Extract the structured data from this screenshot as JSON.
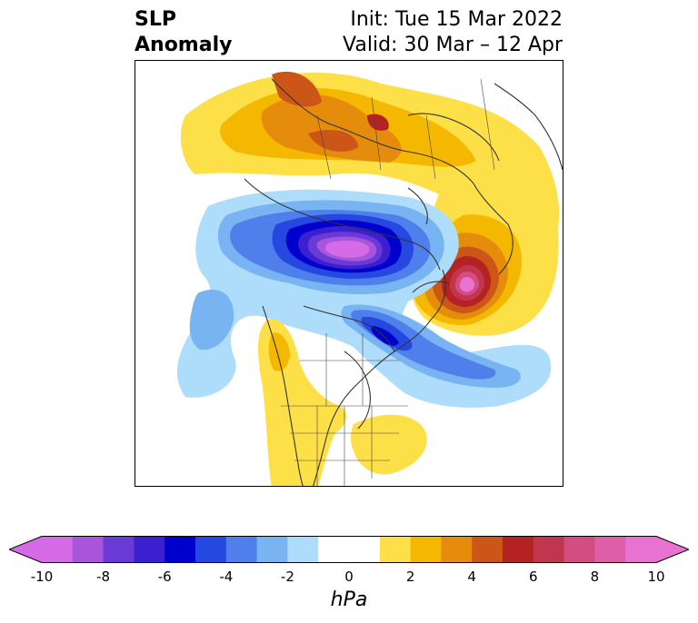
{
  "header": {
    "title_line1": "SLP",
    "title_line2": "Anomaly",
    "init_text": "Init: Tue 15 Mar 2022",
    "valid_text": "Valid: 30 Mar – 12 Apr"
  },
  "map": {
    "projection": "polar stereographic (Northern Hemisphere)",
    "features": [
      "coastlines",
      "country borders",
      "US state borders",
      "Canadian province borders"
    ],
    "anomaly_centers": [
      {
        "sign": "negative",
        "location": "Arctic Ocean / north of Siberia & Alaska",
        "approx_min_hPa": -10
      },
      {
        "sign": "negative",
        "location": "Labrador Sea / Davis Strait",
        "approx_min_hPa": -6
      },
      {
        "sign": "positive",
        "location": "Scandinavia / Norwegian Sea",
        "approx_max_hPa": 10
      },
      {
        "sign": "positive",
        "location": "Central Siberia",
        "approx_max_hPa": 6
      },
      {
        "sign": "positive",
        "location": "Western North America / Rockies",
        "approx_max_hPa": 2
      },
      {
        "sign": "positive",
        "location": "Eastern United States",
        "approx_max_hPa": 2
      }
    ]
  },
  "colorbar": {
    "unit_label": "hPa",
    "ticks": [
      "-10",
      "-8",
      "-6",
      "-4",
      "-2",
      "0",
      "2",
      "4",
      "6",
      "8",
      "10"
    ],
    "colors": [
      "#d56be6",
      "#a855dc",
      "#6a3ad6",
      "#3b1fd0",
      "#0000cc",
      "#2548e0",
      "#4f7fea",
      "#78b3f2",
      "#aedcfb",
      "#ffffff",
      "#ffffff",
      "#fde047",
      "#f5b800",
      "#e58c0c",
      "#cc5518",
      "#b42222",
      "#c2354e",
      "#d24d80",
      "#de5fa8",
      "#e872d0"
    ],
    "extend": "both"
  }
}
